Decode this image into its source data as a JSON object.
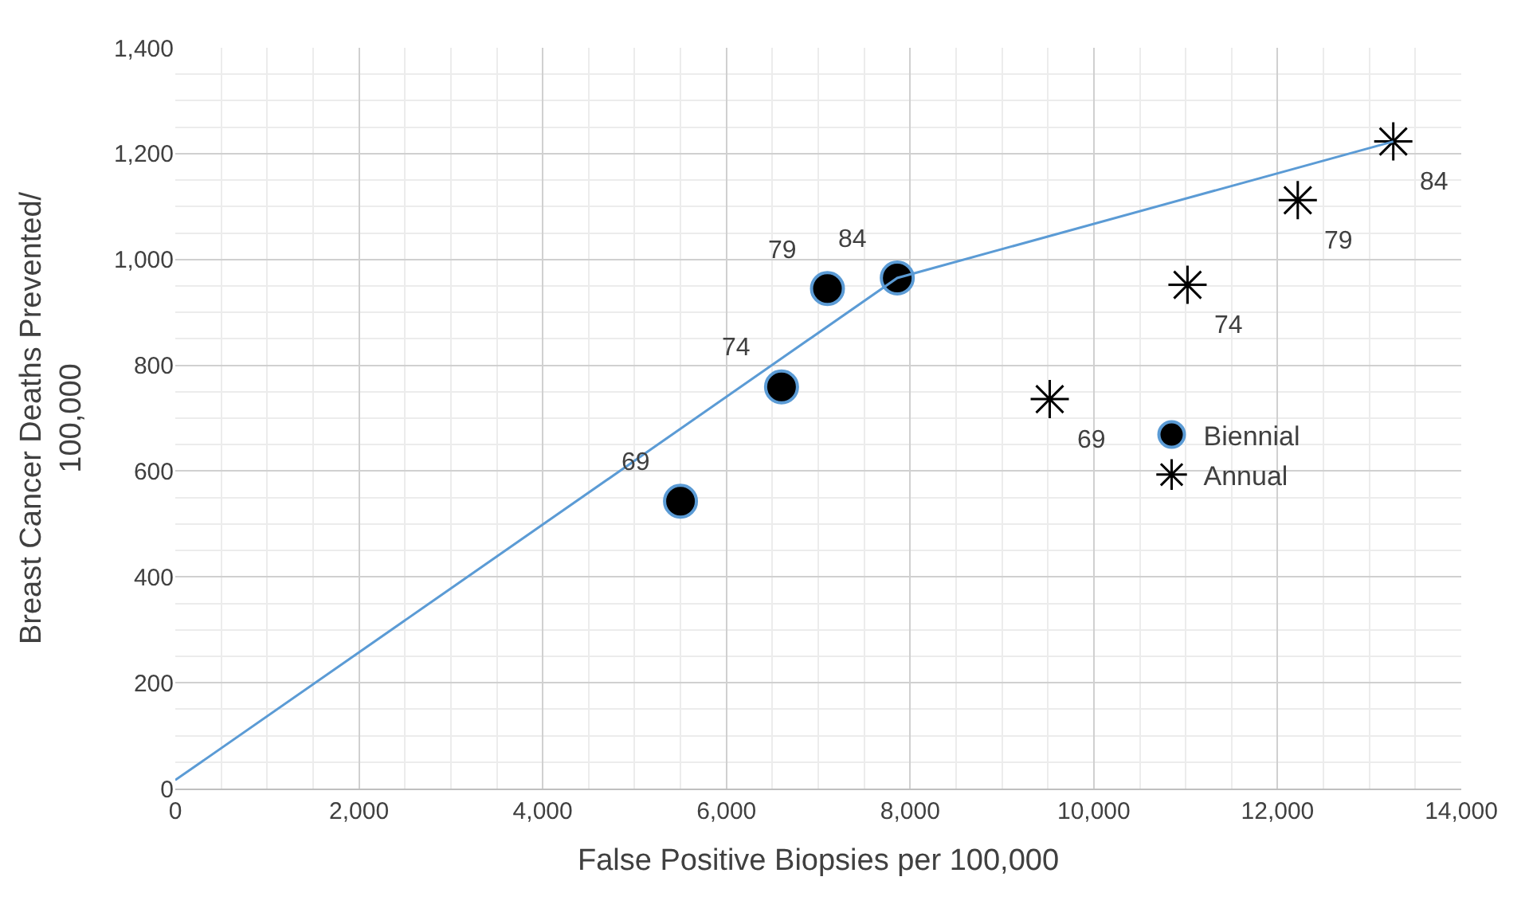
{
  "chart_data": {
    "type": "scatter",
    "xlabel": "False Positive Biopsies per 100,000",
    "ylabel": "Breast Cancer Deaths Prevented/\n100,000",
    "xlim": [
      0,
      14000
    ],
    "xticks": [
      {
        "value": 0,
        "label": "0"
      },
      {
        "value": 2000,
        "label": "2,000"
      },
      {
        "value": 4000,
        "label": "4,000"
      },
      {
        "value": 6000,
        "label": "6,000"
      },
      {
        "value": 8000,
        "label": "8,000"
      },
      {
        "value": 10000,
        "label": "10,000"
      },
      {
        "value": 12000,
        "label": "12,000"
      },
      {
        "value": 14000,
        "label": "14,000"
      }
    ],
    "ylim": [
      0,
      1400
    ],
    "yticks": [
      0,
      200,
      400,
      600,
      800,
      {
        "value": 1000,
        "label": "1,000"
      },
      {
        "value": 1200,
        "label": "1,200"
      },
      {
        "value": 1400,
        "label": "1,400"
      }
    ],
    "grid": true,
    "legend": "right",
    "series": [
      {
        "name": "Biennial",
        "marker": "circle",
        "color": "#000000",
        "x": [
          5500,
          6600,
          7100,
          7860
        ],
        "values": [
          543,
          759,
          945,
          965
        ]
      },
      {
        "name": "Annual",
        "marker": "cross",
        "color": "#000000",
        "x": [
          9520,
          11020,
          12220,
          13260
        ],
        "values": [
          736,
          952,
          1112,
          1223
        ]
      },
      {
        "type": "line",
        "color": "#5b9bd5",
        "marker": "none",
        "x": [
          0,
          7860,
          13260
        ],
        "values": [
          16,
          965,
          1223
        ]
      }
    ],
    "annotations": [
      {
        "text": "69",
        "x": 5500,
        "y": 543
      },
      {
        "text": "74",
        "x": 6600,
        "y": 759
      },
      {
        "text": "79",
        "x": 7100,
        "y": 945
      },
      {
        "text": "84",
        "x": 7860,
        "y": 965
      },
      {
        "text": "69",
        "x": 9520,
        "y": 736
      },
      {
        "text": "74",
        "x": 11020,
        "y": 952
      },
      {
        "text": "79",
        "x": 12220,
        "y": 1112
      },
      {
        "text": "84",
        "x": 13260,
        "y": 1223
      }
    ]
  }
}
